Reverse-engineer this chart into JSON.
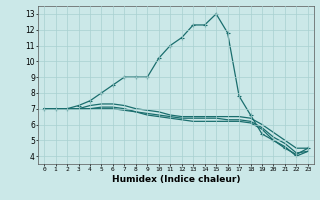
{
  "title": "",
  "xlabel": "Humidex (Indice chaleur)",
  "background_color": "#cbe8e8",
  "line_color": "#1a6e6e",
  "grid_color": "#a8d0d0",
  "xlim": [
    -0.5,
    23.5
  ],
  "ylim": [
    3.5,
    13.5
  ],
  "xticks": [
    0,
    1,
    2,
    3,
    4,
    5,
    6,
    7,
    8,
    9,
    10,
    11,
    12,
    13,
    14,
    15,
    16,
    17,
    18,
    19,
    20,
    21,
    22,
    23
  ],
  "yticks": [
    4,
    5,
    6,
    7,
    8,
    9,
    10,
    11,
    12,
    13
  ],
  "series": [
    {
      "x": [
        0,
        1,
        2,
        3,
        4,
        5,
        6,
        7,
        8,
        9,
        10,
        11,
        12,
        13,
        14,
        15,
        16,
        17,
        18,
        19,
        20,
        21,
        22,
        23
      ],
      "y": [
        7.0,
        7.0,
        7.0,
        7.2,
        7.5,
        8.0,
        8.5,
        9.0,
        9.0,
        9.0,
        10.2,
        11.0,
        11.5,
        12.3,
        12.3,
        13.0,
        11.8,
        7.8,
        6.6,
        5.4,
        5.0,
        4.5,
        4.1,
        4.5
      ],
      "marker": "+"
    },
    {
      "x": [
        0,
        1,
        2,
        3,
        4,
        5,
        6,
        7,
        8,
        9,
        10,
        11,
        12,
        13,
        14,
        15,
        16,
        17,
        18,
        19,
        20,
        21,
        22,
        23
      ],
      "y": [
        7.0,
        7.0,
        7.0,
        7.0,
        7.2,
        7.3,
        7.3,
        7.2,
        7.0,
        6.9,
        6.8,
        6.6,
        6.5,
        6.5,
        6.5,
        6.5,
        6.5,
        6.5,
        6.4,
        6.0,
        5.5,
        5.0,
        4.5,
        4.5
      ],
      "marker": null
    },
    {
      "x": [
        0,
        1,
        2,
        3,
        4,
        5,
        6,
        7,
        8,
        9,
        10,
        11,
        12,
        13,
        14,
        15,
        16,
        17,
        18,
        19,
        20,
        21,
        22,
        23
      ],
      "y": [
        7.0,
        7.0,
        7.0,
        7.0,
        7.0,
        7.1,
        7.1,
        7.0,
        6.8,
        6.7,
        6.6,
        6.5,
        6.4,
        6.4,
        6.4,
        6.4,
        6.3,
        6.3,
        6.2,
        5.8,
        5.2,
        4.8,
        4.2,
        4.3
      ],
      "marker": null
    },
    {
      "x": [
        0,
        1,
        2,
        3,
        4,
        5,
        6,
        7,
        8,
        9,
        10,
        11,
        12,
        13,
        14,
        15,
        16,
        17,
        18,
        19,
        20,
        21,
        22,
        23
      ],
      "y": [
        7.0,
        7.0,
        7.0,
        7.0,
        7.0,
        7.0,
        7.0,
        6.9,
        6.8,
        6.6,
        6.5,
        6.4,
        6.3,
        6.2,
        6.2,
        6.2,
        6.2,
        6.2,
        6.1,
        5.7,
        5.0,
        4.6,
        4.0,
        4.3
      ],
      "marker": null
    }
  ]
}
